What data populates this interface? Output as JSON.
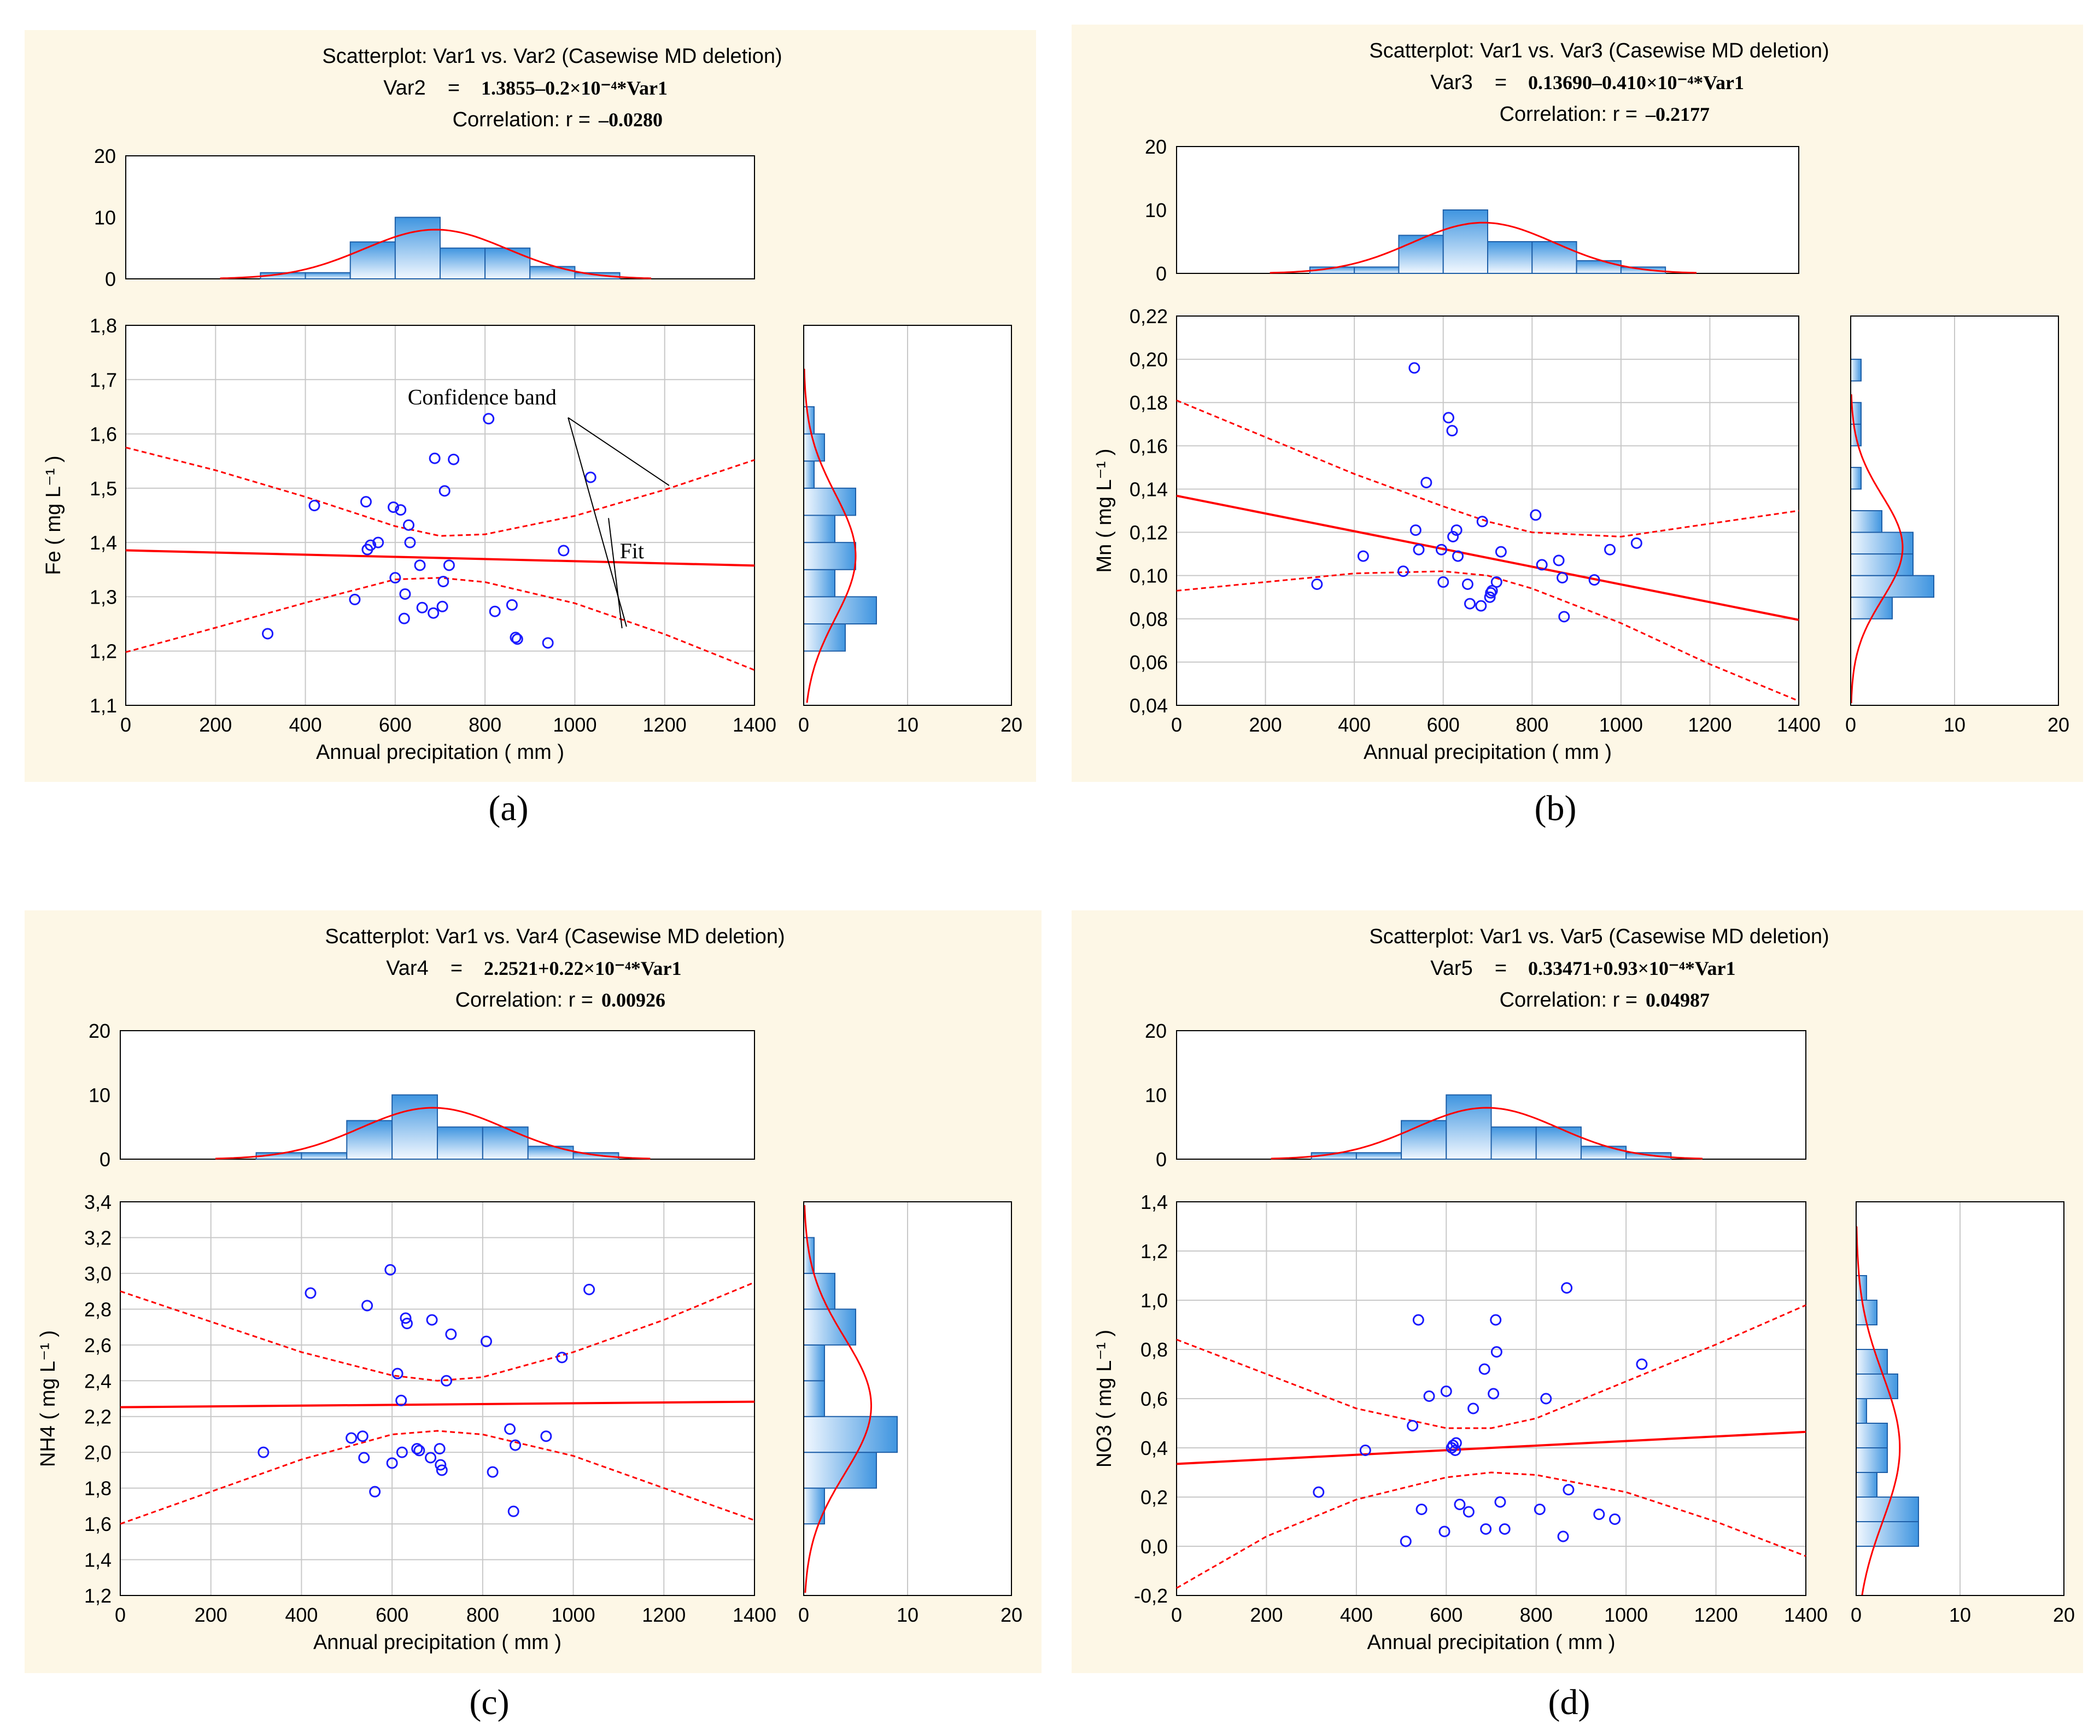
{
  "colors": {
    "panel_background": "#fdf7e6",
    "points": "#1a1aff",
    "fit_and_band": "#ff0000",
    "histogram_bars": "#7ab9ec"
  },
  "chart_data": [
    {
      "type": "scatter",
      "caption": "(a)",
      "title": "Scatterplot: Var1     vs. Var2     (Casewise MD deletion)",
      "equation_label": "Var2",
      "equation": "1.3855–0.2×10⁻⁴*Var1",
      "correlation_label": "Correlation: r = ",
      "correlation_value": "–0.0280",
      "xlabel": "Annual precipitation ( mm )",
      "ylabel": "Fe ( mg L⁻¹ )",
      "xlim": [
        0,
        1400
      ],
      "ylim": [
        1.1,
        1.8
      ],
      "xticks": [
        "0",
        "200",
        "400",
        "600",
        "800",
        "1000",
        "1200",
        "1400"
      ],
      "yticks": [
        "1,1",
        "1,2",
        "1,3",
        "1,4",
        "1,5",
        "1,6",
        "1,7",
        "1,8"
      ],
      "grid": true,
      "points": {
        "x": [
          316,
          420,
          510,
          535,
          538,
          545,
          562,
          596,
          600,
          612,
          620,
          622,
          630,
          633,
          655,
          660,
          685,
          688,
          705,
          707,
          710,
          720,
          730,
          808,
          822,
          860,
          868,
          872,
          940,
          975,
          1035
        ],
        "y": [
          1.232,
          1.468,
          1.295,
          1.475,
          1.387,
          1.395,
          1.4,
          1.465,
          1.335,
          1.46,
          1.26,
          1.305,
          1.432,
          1.4,
          1.358,
          1.28,
          1.27,
          1.555,
          1.282,
          1.328,
          1.495,
          1.358,
          1.553,
          1.628,
          1.273,
          1.285,
          1.225,
          1.222,
          1.215,
          1.385,
          1.52
        ]
      },
      "fit": {
        "x": [
          0,
          1400
        ],
        "y": [
          1.3855,
          1.3575
        ]
      },
      "confidence_band": {
        "x": [
          0,
          200,
          400,
          600,
          700,
          800,
          1000,
          1200,
          1400
        ],
        "upper": [
          1.575,
          1.533,
          1.484,
          1.43,
          1.412,
          1.415,
          1.449,
          1.497,
          1.552
        ],
        "lower": [
          1.198,
          1.243,
          1.289,
          1.332,
          1.335,
          1.327,
          1.288,
          1.231,
          1.165
        ]
      },
      "x_histogram": {
        "bin_edges": [
          300,
          400,
          500,
          600,
          700,
          800,
          900,
          1000,
          1100
        ],
        "counts": [
          1,
          1,
          6,
          10,
          5,
          5,
          2,
          1
        ],
        "ylim": [
          0,
          20
        ],
        "yticks": [
          "0",
          "10",
          "20"
        ],
        "normal_fit": {
          "mean": 690,
          "sd": 160,
          "peak": 8
        }
      },
      "y_histogram": {
        "bin_edges": [
          1.2,
          1.25,
          1.3,
          1.35,
          1.4,
          1.45,
          1.5,
          1.55,
          1.6,
          1.65
        ],
        "counts": [
          4,
          7,
          3,
          5,
          3,
          5,
          1,
          2,
          1
        ],
        "xlim": [
          0,
          20
        ],
        "xticks": [
          "0",
          "10",
          "20"
        ],
        "normal_fit": {
          "mean": 1.375,
          "sd": 0.115,
          "peak": 5
        }
      },
      "annotations": [
        "Confidence band",
        "Fit"
      ]
    },
    {
      "type": "scatter",
      "caption": "(b)",
      "title": "Scatterplot: Var1     vs. Var3     (Casewise MD deletion)",
      "equation_label": "Var3",
      "equation": "0.13690–0.410×10⁻⁴*Var1",
      "correlation_label": "Correlation: r = ",
      "correlation_value": "–0.2177",
      "xlabel": "Annual precipitation ( mm )",
      "ylabel": "Mn ( mg L⁻¹ )",
      "xlim": [
        0,
        1400
      ],
      "ylim": [
        0.04,
        0.22
      ],
      "xticks": [
        "0",
        "200",
        "400",
        "600",
        "800",
        "1000",
        "1200",
        "1400"
      ],
      "yticks": [
        "0,04",
        "0,06",
        "0,08",
        "0,10",
        "0,12",
        "0,14",
        "0,16",
        "0,18",
        "0,20",
        "0,22"
      ],
      "grid": true,
      "points": {
        "x": [
          316,
          420,
          510,
          535,
          538,
          545,
          562,
          596,
          600,
          612,
          620,
          622,
          630,
          633,
          655,
          660,
          685,
          688,
          705,
          707,
          710,
          720,
          730,
          808,
          822,
          860,
          868,
          872,
          940,
          975,
          1035
        ],
        "y": [
          0.096,
          0.109,
          0.102,
          0.196,
          0.121,
          0.112,
          0.143,
          0.112,
          0.097,
          0.173,
          0.167,
          0.118,
          0.121,
          0.109,
          0.096,
          0.087,
          0.086,
          0.125,
          0.09,
          0.092,
          0.093,
          0.097,
          0.111,
          0.128,
          0.105,
          0.107,
          0.099,
          0.081,
          0.098,
          0.112,
          0.115
        ]
      },
      "fit": {
        "x": [
          0,
          1400
        ],
        "y": [
          0.1369,
          0.0795
        ]
      },
      "confidence_band": {
        "x": [
          0,
          200,
          400,
          600,
          700,
          800,
          1000,
          1200,
          1400
        ],
        "upper": [
          0.181,
          0.164,
          0.147,
          0.132,
          0.125,
          0.12,
          0.118,
          0.124,
          0.13
        ],
        "lower": [
          0.093,
          0.097,
          0.101,
          0.102,
          0.1,
          0.094,
          0.078,
          0.059,
          0.042
        ]
      },
      "x_histogram": {
        "bin_edges": [
          300,
          400,
          500,
          600,
          700,
          800,
          900,
          1000,
          1100
        ],
        "counts": [
          1,
          1,
          6,
          10,
          5,
          5,
          2,
          1
        ],
        "ylim": [
          0,
          20
        ],
        "yticks": [
          "0",
          "10",
          "20"
        ],
        "normal_fit": {
          "mean": 690,
          "sd": 160,
          "peak": 8
        }
      },
      "y_histogram": {
        "bin_edges": [
          0.08,
          0.09,
          0.1,
          0.11,
          0.12,
          0.13,
          0.14,
          0.15,
          0.16,
          0.17,
          0.18,
          0.19,
          0.2
        ],
        "counts": [
          4,
          8,
          6,
          6,
          3,
          0,
          1,
          0,
          1,
          1,
          0,
          1
        ],
        "xlim": [
          0,
          20
        ],
        "xticks": [
          "0",
          "10",
          "20"
        ],
        "normal_fit": {
          "mean": 0.113,
          "sd": 0.024,
          "peak": 5
        }
      }
    },
    {
      "type": "scatter",
      "caption": "(c)",
      "title": "Scatterplot: Var1     vs. Var4     (Casewise MD deletion)",
      "equation_label": "Var4",
      "equation": "2.2521+0.22×10⁻⁴*Var1",
      "correlation_label": "Correlation: r = ",
      "correlation_value": "0.00926",
      "xlabel": "Annual precipitation ( mm )",
      "ylabel": "NH4 ( mg L⁻¹ )",
      "xlim": [
        0,
        1400
      ],
      "ylim": [
        1.2,
        3.4
      ],
      "xticks": [
        "0",
        "200",
        "400",
        "600",
        "800",
        "1000",
        "1200",
        "1400"
      ],
      "yticks": [
        "1,2",
        "1,4",
        "1,6",
        "1,8",
        "2,0",
        "2,2",
        "2,4",
        "2,6",
        "2,8",
        "3,0",
        "3,2",
        "3,4"
      ],
      "grid": true,
      "points": {
        "x": [
          316,
          420,
          510,
          535,
          538,
          545,
          562,
          596,
          600,
          612,
          620,
          622,
          630,
          633,
          655,
          660,
          685,
          688,
          705,
          707,
          710,
          720,
          730,
          808,
          822,
          860,
          868,
          872,
          940,
          975,
          1035
        ],
        "y": [
          2.0,
          2.89,
          2.08,
          2.09,
          1.97,
          2.82,
          1.78,
          3.02,
          1.94,
          2.44,
          2.29,
          2.0,
          2.75,
          2.72,
          2.02,
          2.01,
          1.97,
          2.74,
          2.02,
          1.93,
          1.9,
          2.4,
          2.66,
          2.62,
          1.89,
          2.13,
          1.67,
          2.04,
          2.09,
          2.53,
          2.91
        ]
      },
      "fit": {
        "x": [
          0,
          1400
        ],
        "y": [
          2.2521,
          2.2829
        ]
      },
      "confidence_band": {
        "x": [
          0,
          200,
          400,
          600,
          700,
          800,
          1000,
          1200,
          1400
        ],
        "upper": [
          2.9,
          2.73,
          2.56,
          2.43,
          2.4,
          2.42,
          2.56,
          2.74,
          2.95
        ],
        "lower": [
          1.6,
          1.78,
          1.96,
          2.1,
          2.12,
          2.1,
          1.98,
          1.8,
          1.62
        ]
      },
      "x_histogram": {
        "bin_edges": [
          300,
          400,
          500,
          600,
          700,
          800,
          900,
          1000,
          1100
        ],
        "counts": [
          1,
          1,
          6,
          10,
          5,
          5,
          2,
          1
        ],
        "ylim": [
          0,
          20
        ],
        "yticks": [
          "0",
          "10",
          "20"
        ],
        "normal_fit": {
          "mean": 690,
          "sd": 160,
          "peak": 8
        }
      },
      "y_histogram": {
        "bin_edges": [
          1.6,
          1.8,
          2.0,
          2.2,
          2.4,
          2.6,
          2.8,
          3.0,
          3.2
        ],
        "counts": [
          2,
          7,
          9,
          2,
          2,
          5,
          3,
          1
        ],
        "xlim": [
          0,
          20
        ],
        "xticks": [
          "0",
          "10",
          "20"
        ],
        "normal_fit": {
          "mean": 2.26,
          "sd": 0.38,
          "peak": 6.5
        }
      }
    },
    {
      "type": "scatter",
      "caption": "(d)",
      "title": "Scatterplot: Var1     vs. Var5     (Casewise MD deletion)",
      "equation_label": "Var5",
      "equation": "0.33471+0.93×10⁻⁴*Var1",
      "correlation_label": "Correlation: r = ",
      "correlation_value": "0.04987",
      "xlabel": "Annual precipitation ( mm )",
      "ylabel": "NO3 ( mg L⁻¹ )",
      "xlim": [
        0,
        1400
      ],
      "ylim": [
        -0.2,
        1.4
      ],
      "xticks": [
        "0",
        "200",
        "400",
        "600",
        "800",
        "1000",
        "1200",
        "1400"
      ],
      "yticks": [
        "-0,2",
        "0,0",
        "0,2",
        "0,4",
        "0,6",
        "0,8",
        "1,0",
        "1,2",
        "1,4"
      ],
      "grid": true,
      "points": {
        "x": [
          316,
          420,
          510,
          525,
          538,
          545,
          562,
          596,
          600,
          612,
          615,
          620,
          622,
          630,
          650,
          660,
          685,
          688,
          705,
          710,
          712,
          720,
          730,
          808,
          822,
          860,
          868,
          872,
          940,
          975,
          1035
        ],
        "y": [
          0.22,
          0.39,
          0.02,
          0.49,
          0.92,
          0.15,
          0.61,
          0.06,
          0.63,
          0.4,
          0.41,
          0.39,
          0.42,
          0.17,
          0.14,
          0.56,
          0.72,
          0.07,
          0.62,
          0.92,
          0.79,
          0.18,
          0.07,
          0.15,
          0.6,
          0.04,
          1.05,
          0.23,
          0.13,
          0.11,
          0.74
        ]
      },
      "fit": {
        "x": [
          0,
          1400
        ],
        "y": [
          0.3347,
          0.4649
        ]
      },
      "confidence_band": {
        "x": [
          0,
          200,
          400,
          600,
          700,
          800,
          1000,
          1200,
          1400
        ],
        "upper": [
          0.84,
          0.7,
          0.56,
          0.48,
          0.48,
          0.52,
          0.67,
          0.82,
          0.98
        ],
        "lower": [
          -0.17,
          0.04,
          0.19,
          0.28,
          0.3,
          0.29,
          0.22,
          0.1,
          -0.04
        ]
      },
      "x_histogram": {
        "bin_edges": [
          300,
          400,
          500,
          600,
          700,
          800,
          900,
          1000,
          1100
        ],
        "counts": [
          1,
          1,
          6,
          10,
          5,
          5,
          2,
          1
        ],
        "ylim": [
          0,
          20
        ],
        "yticks": [
          "0",
          "10",
          "20"
        ],
        "normal_fit": {
          "mean": 690,
          "sd": 160,
          "peak": 8
        }
      },
      "y_histogram": {
        "bin_edges": [
          0.0,
          0.1,
          0.2,
          0.3,
          0.4,
          0.5,
          0.6,
          0.7,
          0.8,
          0.9,
          1.0,
          1.1
        ],
        "counts": [
          6,
          6,
          2,
          3,
          3,
          1,
          4,
          3,
          0,
          2,
          1
        ],
        "xlim": [
          0,
          20
        ],
        "xticks": [
          "0",
          "10",
          "20"
        ],
        "normal_fit": {
          "mean": 0.4,
          "sd": 0.3,
          "peak": 4.2
        }
      }
    }
  ]
}
